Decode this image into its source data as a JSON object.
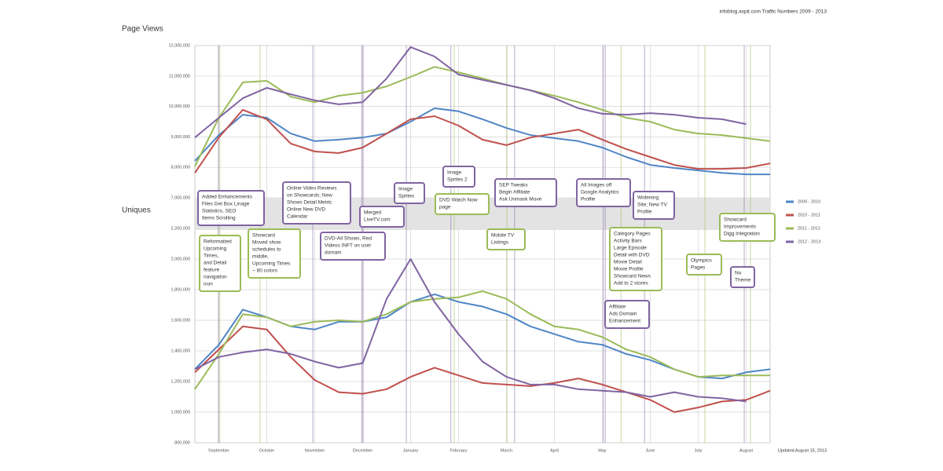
{
  "header": {
    "title": "infoblog.aspit.com Traffic Numbers 2009 - 2013",
    "updated": "Updated August 15, 2013"
  },
  "chart_data": [
    {
      "type": "line",
      "title": "Page Views",
      "x": [
        0,
        0.5,
        1,
        1.5,
        2,
        2.5,
        3,
        3.5,
        4,
        4.5,
        5,
        5.5,
        6,
        6.5,
        7,
        7.5,
        8,
        8.5,
        9,
        9.5,
        10,
        10.5,
        11,
        11.5,
        12
      ],
      "xlim": [
        0,
        12
      ],
      "ylim": [
        7000000,
        12000000
      ],
      "yticks": [
        {
          "value": 7000000,
          "label": "7,000,000"
        },
        {
          "value": 8000000,
          "label": "8,000,000"
        },
        {
          "value": 9000000,
          "label": "9,000,000"
        },
        {
          "value": 10000000,
          "label": "10,000,000"
        },
        {
          "value": 11000000,
          "label": "11,000,000"
        },
        {
          "value": 12000000,
          "label": "12,000,000"
        }
      ],
      "grid": true,
      "series": [
        {
          "name": "2009 - 2010",
          "color": "#4f86c6",
          "values": [
            8210000,
            9060000,
            9730000,
            9630000,
            9110000,
            8860000,
            8910000,
            8980000,
            9110000,
            9500000,
            9940000,
            9840000,
            9580000,
            9290000,
            9060000,
            8960000,
            8860000,
            8650000,
            8340000,
            8080000,
            7980000,
            7900000,
            7820000,
            7770000,
            7770000
          ]
        },
        {
          "name": "2010 - 2011",
          "color": "#c0504d",
          "values": [
            7820000,
            8980000,
            9890000,
            9580000,
            8780000,
            8520000,
            8470000,
            8650000,
            9110000,
            9580000,
            9680000,
            9370000,
            8910000,
            8730000,
            8980000,
            9110000,
            9240000,
            8910000,
            8600000,
            8340000,
            8080000,
            7950000,
            7950000,
            7980000,
            8130000
          ]
        },
        {
          "name": "2011 - 2012",
          "color": "#9bbb59",
          "values": [
            8030000,
            9630000,
            10790000,
            10840000,
            10320000,
            10140000,
            10350000,
            10450000,
            10660000,
            10970000,
            11300000,
            11120000,
            10920000,
            10710000,
            10530000,
            10350000,
            10140000,
            9890000,
            9630000,
            9500000,
            9240000,
            9110000,
            9060000,
            8960000,
            8860000
          ]
        },
        {
          "name": "2012 - 2013",
          "color": "#8064a2",
          "values": [
            8980000,
            9630000,
            10270000,
            10610000,
            10400000,
            10200000,
            10070000,
            10140000,
            10920000,
            11950000,
            11640000,
            11050000,
            10870000,
            10710000,
            10530000,
            10270000,
            9940000,
            9760000,
            9730000,
            9780000,
            9730000,
            9630000,
            9580000,
            9420000,
            null
          ]
        }
      ]
    },
    {
      "type": "line",
      "title": "Uniques",
      "x": [
        0,
        0.5,
        1,
        1.5,
        2,
        2.5,
        3,
        3.5,
        4,
        4.5,
        5,
        5.5,
        6,
        6.5,
        7,
        7.5,
        8,
        8.5,
        9,
        9.5,
        10,
        10.5,
        11,
        11.5,
        12
      ],
      "xlim": [
        0,
        12
      ],
      "xticks": [
        {
          "value": 0.5,
          "label": "September"
        },
        {
          "value": 1.5,
          "label": "October"
        },
        {
          "value": 2.5,
          "label": "November"
        },
        {
          "value": 3.5,
          "label": "December"
        },
        {
          "value": 4.5,
          "label": "January"
        },
        {
          "value": 5.5,
          "label": "February"
        },
        {
          "value": 6.5,
          "label": "March"
        },
        {
          "value": 7.5,
          "label": "April"
        },
        {
          "value": 8.5,
          "label": "May"
        },
        {
          "value": 9.5,
          "label": "June"
        },
        {
          "value": 10.5,
          "label": "July"
        },
        {
          "value": 11.5,
          "label": "August"
        }
      ],
      "ylim": [
        800000,
        2200000
      ],
      "yticks": [
        {
          "value": 800000,
          "label": "800,000"
        },
        {
          "value": 1000000,
          "label": "1,000,000"
        },
        {
          "value": 1200000,
          "label": "1,200,000"
        },
        {
          "value": 1400000,
          "label": "1,400,000"
        },
        {
          "value": 1600000,
          "label": "1,600,000"
        },
        {
          "value": 1800000,
          "label": "1,800,000"
        },
        {
          "value": 2000000,
          "label": "2,000,000"
        },
        {
          "value": 2200000,
          "label": "2,200,000"
        }
      ],
      "grid": true,
      "series": [
        {
          "color": "#4f86c6",
          "values": [
            1280000,
            1440000,
            1670000,
            1620000,
            1560000,
            1540000,
            1590000,
            1590000,
            1620000,
            1720000,
            1770000,
            1720000,
            1690000,
            1640000,
            1560000,
            1510000,
            1460000,
            1440000,
            1380000,
            1340000,
            1280000,
            1230000,
            1220000,
            1260000,
            1280000
          ]
        },
        {
          "color": "#c0504d",
          "values": [
            1260000,
            1410000,
            1560000,
            1540000,
            1360000,
            1210000,
            1130000,
            1120000,
            1150000,
            1230000,
            1290000,
            1240000,
            1190000,
            1180000,
            1170000,
            1190000,
            1220000,
            1180000,
            1130000,
            1080000,
            1000000,
            1030000,
            1070000,
            1080000,
            1140000
          ]
        },
        {
          "color": "#9bbb59",
          "values": [
            1150000,
            1380000,
            1640000,
            1620000,
            1560000,
            1590000,
            1600000,
            1590000,
            1640000,
            1720000,
            1740000,
            1750000,
            1790000,
            1740000,
            1640000,
            1560000,
            1540000,
            1490000,
            1410000,
            1360000,
            1280000,
            1230000,
            1240000,
            1240000,
            1240000
          ]
        },
        {
          "color": "#8064a2",
          "values": [
            1280000,
            1360000,
            1390000,
            1410000,
            1380000,
            1330000,
            1290000,
            1320000,
            1740000,
            2000000,
            1720000,
            1510000,
            1330000,
            1230000,
            1180000,
            1180000,
            1150000,
            1140000,
            1130000,
            1100000,
            1130000,
            1100000,
            1090000,
            1070000,
            null
          ]
        }
      ]
    }
  ],
  "annotations": [
    {
      "x": 0.49,
      "color": "#8064a2",
      "lines": [
        "Added Enhancements",
        "Files Get Box Linage",
        "Statistics, SEO",
        "Items Scrolling"
      ]
    },
    {
      "x": 0.52,
      "color": "#9bbb59",
      "lines": [
        "Reformatted",
        "Upcoming",
        "Times,",
        "and Detail",
        "feature",
        "navigation",
        "icon"
      ]
    },
    {
      "x": 1.36,
      "color": "#9bbb59",
      "lines": [
        "Showcard",
        "Moved show",
        "schedules to",
        "middle,",
        "Upcoming Times",
        "~ 80 colors"
      ]
    },
    {
      "x": 2.46,
      "color": "#8064a2",
      "lines": [
        "Online Video Reviews",
        "on Showcards; New",
        "Shows Detail Metric",
        "Online New DVD",
        "Calendar"
      ]
    },
    {
      "x": 3.48,
      "color": "#8064a2",
      "lines": [
        "DVD-All Shows, Red",
        "Videos INFT on user",
        "domain"
      ]
    },
    {
      "x": 3.51,
      "color": "#8064a2",
      "lines": [
        "Merged",
        "LiveTV.com"
      ]
    },
    {
      "x": 4.41,
      "color": "#8064a2",
      "lines": [
        "Image",
        "Sprites"
      ]
    },
    {
      "x": 5.34,
      "color": "#8064a2",
      "lines": [
        "Image",
        "Sprites 2"
      ]
    },
    {
      "x": 5.41,
      "color": "#9bbb59",
      "lines": [
        "DVD Watch Now",
        "page"
      ]
    },
    {
      "x": 6.67,
      "color": "#8064a2",
      "lines": [
        "SEP Tweaks",
        "Begin Affiliate",
        "Ask Unmask Move"
      ]
    },
    {
      "x": 6.51,
      "color": "#9bbb59",
      "lines": [
        "Mobile TV",
        "Listings"
      ]
    },
    {
      "x": 8.52,
      "color": "#8064a2",
      "lines": [
        "All Images off",
        "Google Analytics",
        "Profile"
      ]
    },
    {
      "x": 9.38,
      "color": "#8064a2",
      "lines": [
        "Widening",
        "Site; New TV",
        "Profile"
      ]
    },
    {
      "x": 8.89,
      "color": "#9bbb59",
      "lines": [
        "Category Pages",
        "Activity Bars",
        "Large Episode",
        "Detail with DVD",
        "Movie Detail",
        "Movie Profile",
        "Showcard News",
        "Add to 2 stores"
      ]
    },
    {
      "x": 8.56,
      "color": "#8064a2",
      "lines": [
        "Affiliate",
        "Ads Domain",
        "Enhancement"
      ]
    },
    {
      "x": 10.64,
      "color": "#9bbb59",
      "lines": [
        "Olympics",
        "Pages"
      ]
    },
    {
      "x": 11.46,
      "color": "#8064a2",
      "lines": [
        "No",
        "Theme"
      ]
    },
    {
      "x": 11.59,
      "color": "#9bbb59",
      "lines": [
        "Showcard",
        "Improvements",
        "Digg Integration"
      ]
    }
  ]
}
